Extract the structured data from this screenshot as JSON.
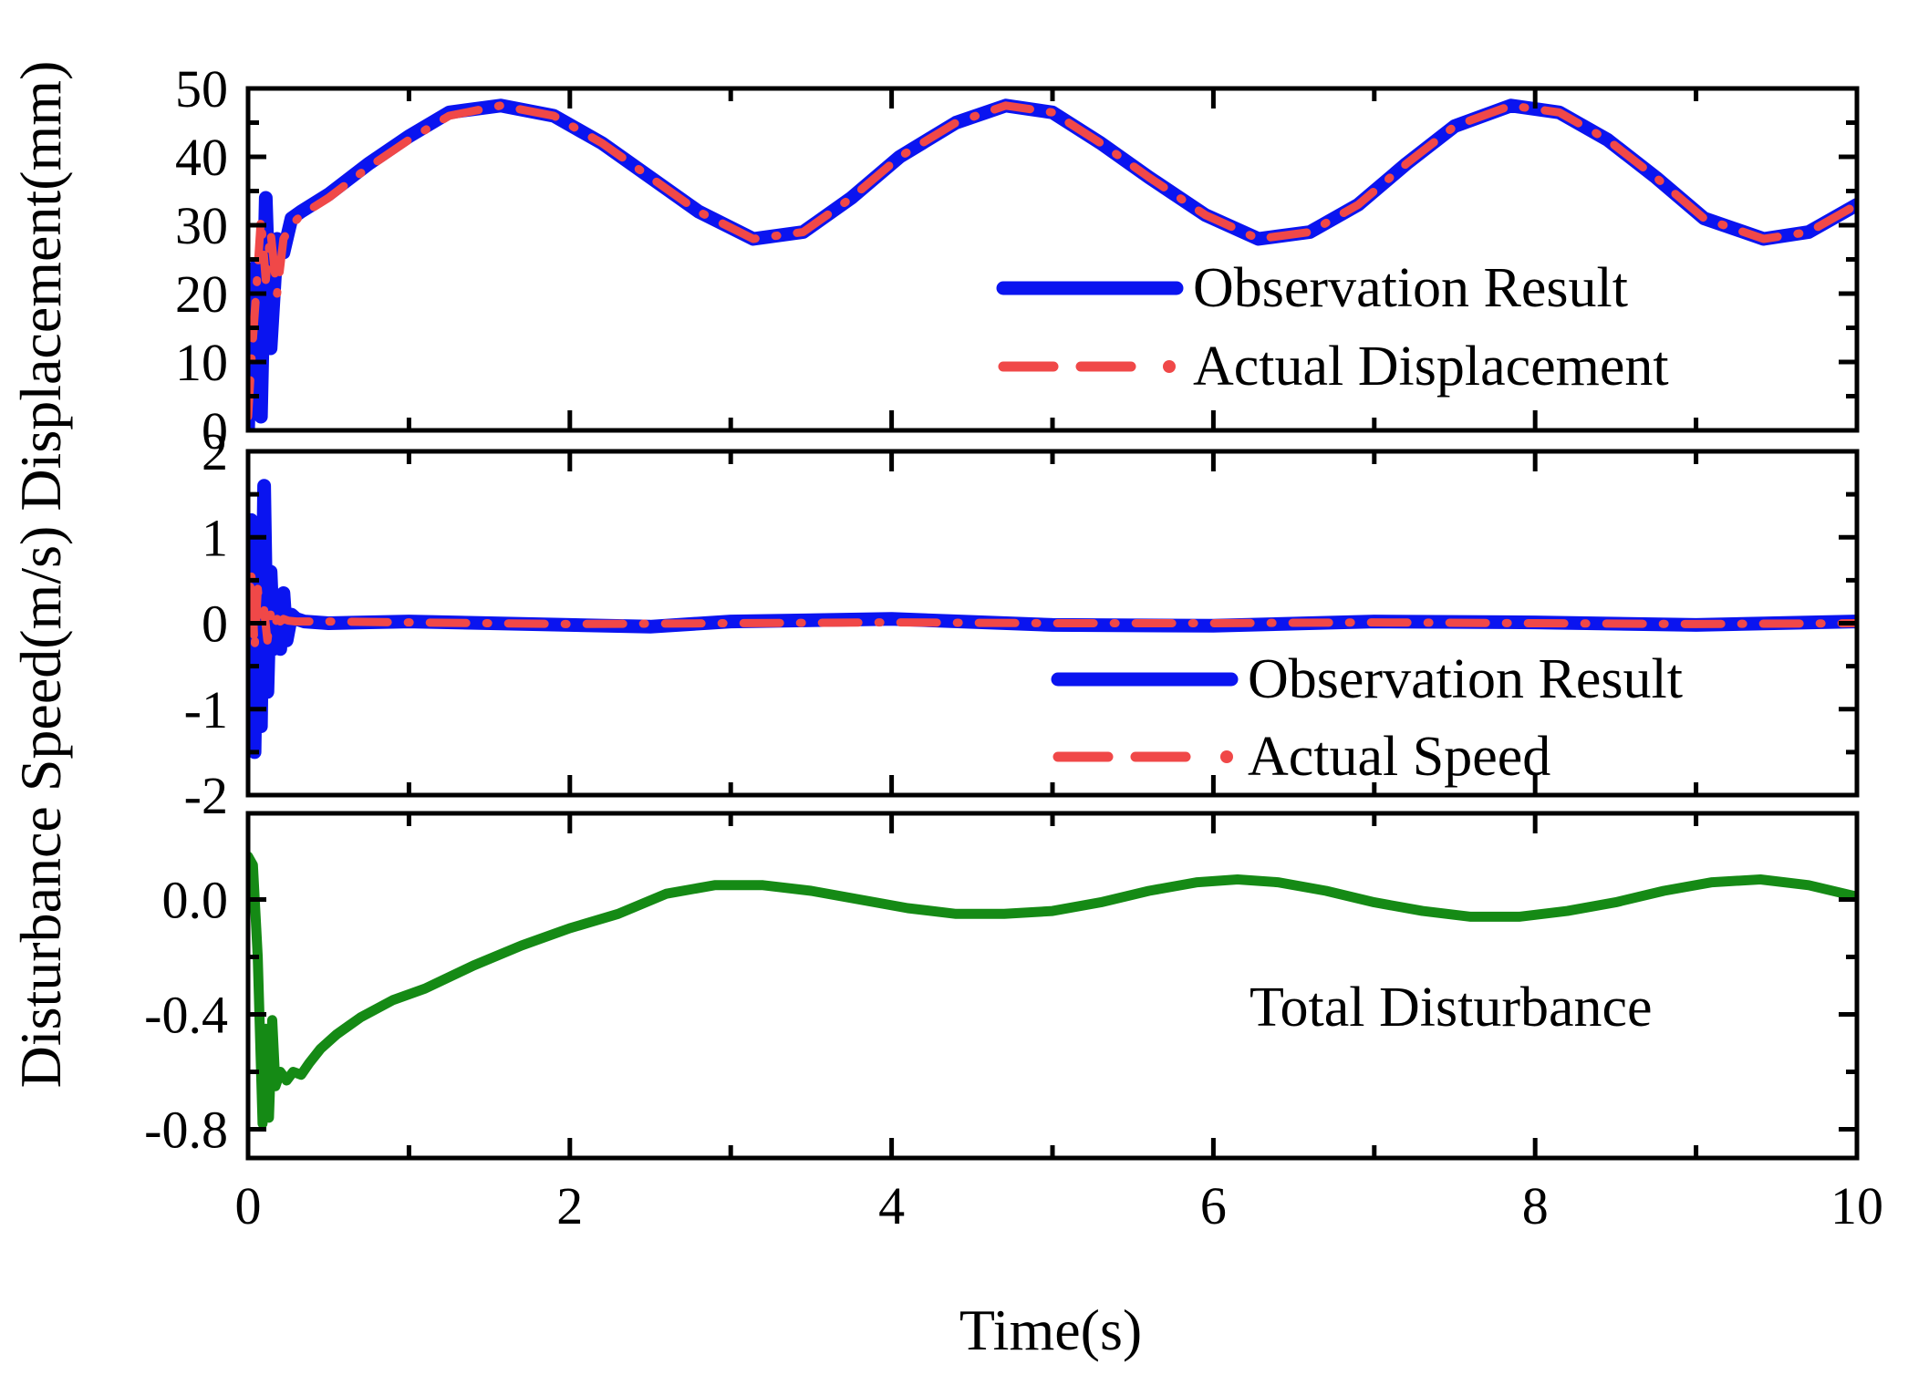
{
  "chart_data": [
    {
      "type": "line",
      "panel": "top",
      "ylabel": "Displacement(mm)",
      "ylim": [
        0,
        50
      ],
      "yticks": [
        0,
        10,
        20,
        30,
        40,
        50
      ],
      "xlim": [
        0,
        10
      ],
      "legend_position": "bottom-right",
      "series": [
        {
          "name": "Observation Result",
          "color": "#0a14f0",
          "style": "solid",
          "x": [
            0,
            0.02,
            0.05,
            0.08,
            0.11,
            0.14,
            0.18,
            0.22,
            0.27,
            0.33,
            0.5,
            0.75,
            1.0,
            1.25,
            1.57,
            1.9,
            2.2,
            2.5,
            2.8,
            3.14,
            3.45,
            3.75,
            4.05,
            4.4,
            4.71,
            5.0,
            5.3,
            5.6,
            5.95,
            6.28,
            6.6,
            6.9,
            7.2,
            7.5,
            7.85,
            8.15,
            8.45,
            8.75,
            9.05,
            9.42,
            9.7,
            10.0
          ],
          "y": [
            0,
            18,
            24,
            2,
            34,
            12,
            28,
            26,
            31,
            32,
            34.5,
            39,
            43,
            46.5,
            47.5,
            46,
            42,
            37,
            32,
            28,
            29,
            34,
            40,
            45,
            47.5,
            46.5,
            42,
            37,
            31.5,
            28,
            29,
            33,
            39,
            44.5,
            47.5,
            46.5,
            42.5,
            37,
            31,
            28,
            29,
            33
          ]
        },
        {
          "name": "Actual Displacement",
          "color": "#f04848",
          "style": "dash-dot",
          "x": [
            0,
            0.02,
            0.05,
            0.08,
            0.11,
            0.14,
            0.18,
            0.22,
            0.27,
            0.33,
            0.5,
            0.75,
            1.0,
            1.25,
            1.57,
            1.9,
            2.2,
            2.5,
            2.8,
            3.14,
            3.45,
            3.75,
            4.05,
            4.4,
            4.71,
            5.0,
            5.3,
            5.6,
            5.95,
            6.28,
            6.6,
            6.9,
            7.2,
            7.5,
            7.85,
            8.15,
            8.45,
            8.75,
            9.05,
            9.42,
            9.7,
            10.0
          ],
          "y": [
            2,
            10,
            20,
            31,
            22,
            29,
            20,
            28,
            30,
            31.5,
            34,
            38.5,
            42.5,
            46,
            47.5,
            46,
            42,
            37,
            32,
            28,
            29,
            34,
            40,
            45,
            47.5,
            46.5,
            42,
            37,
            31.5,
            28,
            29,
            33,
            39,
            44.5,
            47.5,
            46.5,
            42.5,
            37,
            31,
            28,
            29,
            33
          ]
        }
      ]
    },
    {
      "type": "line",
      "panel": "middle",
      "ylabel": "Speed(m/s)",
      "ylim": [
        -2,
        2
      ],
      "yticks": [
        -2,
        -1,
        0,
        1,
        2
      ],
      "xlim": [
        0,
        10
      ],
      "legend_position": "bottom-right",
      "series": [
        {
          "name": "Observation Result",
          "color": "#0a14f0",
          "style": "solid",
          "x": [
            0,
            0.02,
            0.04,
            0.06,
            0.08,
            0.1,
            0.12,
            0.14,
            0.16,
            0.18,
            0.2,
            0.22,
            0.24,
            0.27,
            0.3,
            0.35,
            0.5,
            1.0,
            2.0,
            2.5,
            3.0,
            4.0,
            5.0,
            6.0,
            7.0,
            8.0,
            9.0,
            10.0
          ],
          "y": [
            0,
            1.2,
            -1.5,
            1.0,
            -1.2,
            1.6,
            -0.8,
            0.6,
            -0.3,
            0.3,
            -0.3,
            0.35,
            -0.2,
            0.1,
            0.05,
            0.02,
            0,
            0.02,
            -0.02,
            -0.04,
            0.02,
            0.05,
            -0.02,
            -0.03,
            0.02,
            0.01,
            -0.02,
            0.02
          ]
        },
        {
          "name": "Actual Speed",
          "color": "#f04848",
          "style": "dash-dot",
          "x": [
            0,
            0.02,
            0.04,
            0.06,
            0.08,
            0.1,
            0.12,
            0.14,
            0.16,
            0.18,
            0.2,
            0.22,
            0.25,
            0.3,
            0.5,
            1.0,
            2.0,
            3.0,
            4.0,
            5.0,
            6.0,
            7.0,
            8.0,
            9.0,
            10.0
          ],
          "y": [
            0,
            0.6,
            -0.3,
            0.4,
            0.0,
            0.15,
            -0.2,
            0.1,
            -0.05,
            0.05,
            0.02,
            0.05,
            0.03,
            0.02,
            0.02,
            0.01,
            -0.01,
            0.0,
            0.01,
            0.0,
            0.0,
            0.01,
            0.0,
            -0.01,
            0.0
          ]
        }
      ]
    },
    {
      "type": "line",
      "panel": "bottom",
      "ylabel": "Disturbance",
      "ylim": [
        -0.9,
        0.3
      ],
      "yticks": [
        -0.8,
        -0.4,
        0.0
      ],
      "ytick_labels": [
        "-0.8",
        "-0.4",
        "0.0"
      ],
      "xlim": [
        0,
        10
      ],
      "xticks": [
        0,
        2,
        4,
        6,
        8,
        10
      ],
      "xlabel": "Time(s)",
      "legend_position": "bottom-right",
      "series": [
        {
          "name": "Total Disturbance",
          "color": "#158a15",
          "style": "solid",
          "x": [
            0,
            0.03,
            0.06,
            0.09,
            0.11,
            0.13,
            0.15,
            0.17,
            0.2,
            0.24,
            0.28,
            0.33,
            0.38,
            0.45,
            0.55,
            0.7,
            0.9,
            1.1,
            1.4,
            1.7,
            2.0,
            2.3,
            2.6,
            2.9,
            3.2,
            3.5,
            3.8,
            4.1,
            4.4,
            4.7,
            5.0,
            5.3,
            5.6,
            5.9,
            6.15,
            6.4,
            6.7,
            7.0,
            7.3,
            7.6,
            7.9,
            8.2,
            8.5,
            8.8,
            9.1,
            9.4,
            9.7,
            10.0
          ],
          "y": [
            0.15,
            0.12,
            -0.2,
            -0.78,
            -0.45,
            -0.76,
            -0.42,
            -0.65,
            -0.6,
            -0.63,
            -0.6,
            -0.61,
            -0.57,
            -0.52,
            -0.47,
            -0.41,
            -0.35,
            -0.31,
            -0.23,
            -0.16,
            -0.1,
            -0.05,
            0.02,
            0.05,
            0.05,
            0.03,
            0.0,
            -0.03,
            -0.05,
            -0.05,
            -0.04,
            -0.01,
            0.03,
            0.06,
            0.07,
            0.06,
            0.03,
            -0.01,
            -0.04,
            -0.06,
            -0.06,
            -0.04,
            -0.01,
            0.03,
            0.06,
            0.07,
            0.05,
            0.01
          ]
        }
      ]
    }
  ],
  "axis_titles": {
    "x": "Time(s)",
    "y": "Disturbance Speed(m/s) Displacement(mm)"
  }
}
